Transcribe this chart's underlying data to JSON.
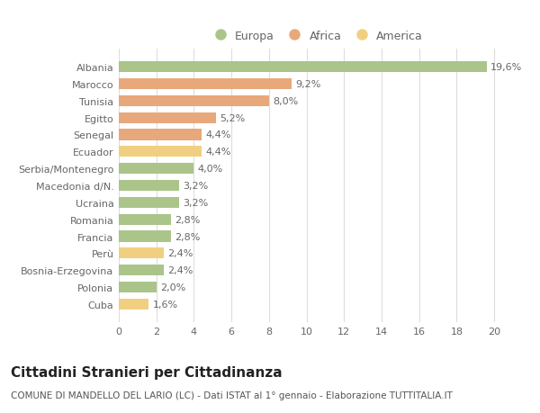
{
  "categories": [
    "Albania",
    "Marocco",
    "Tunisia",
    "Egitto",
    "Senegal",
    "Ecuador",
    "Serbia/Montenegro",
    "Macedonia d/N.",
    "Ucraina",
    "Romania",
    "Francia",
    "Perù",
    "Bosnia-Erzegovina",
    "Polonia",
    "Cuba"
  ],
  "values": [
    19.6,
    9.2,
    8.0,
    5.2,
    4.4,
    4.4,
    4.0,
    3.2,
    3.2,
    2.8,
    2.8,
    2.4,
    2.4,
    2.0,
    1.6
  ],
  "labels": [
    "19,6%",
    "9,2%",
    "8,0%",
    "5,2%",
    "4,4%",
    "4,4%",
    "4,0%",
    "3,2%",
    "3,2%",
    "2,8%",
    "2,8%",
    "2,4%",
    "2,4%",
    "2,0%",
    "1,6%"
  ],
  "colors": [
    "#aac48a",
    "#e8a87c",
    "#e8a87c",
    "#e8a87c",
    "#e8a87c",
    "#f0d080",
    "#aac48a",
    "#aac48a",
    "#aac48a",
    "#aac48a",
    "#aac48a",
    "#f0d080",
    "#aac48a",
    "#aac48a",
    "#f0d080"
  ],
  "legend": [
    {
      "label": "Europa",
      "color": "#aac48a"
    },
    {
      "label": "Africa",
      "color": "#e8a87c"
    },
    {
      "label": "America",
      "color": "#f0d080"
    }
  ],
  "xlim": [
    0,
    21
  ],
  "xticks": [
    0,
    2,
    4,
    6,
    8,
    10,
    12,
    14,
    16,
    18,
    20
  ],
  "title": "Cittadini Stranieri per Cittadinanza",
  "subtitle": "COMUNE DI MANDELLO DEL LARIO (LC) - Dati ISTAT al 1° gennaio - Elaborazione TUTTITALIA.IT",
  "bg_color": "#ffffff",
  "grid_color": "#dddddd",
  "bar_height": 0.65,
  "label_fontsize": 8,
  "tick_fontsize": 8,
  "title_fontsize": 11,
  "subtitle_fontsize": 7.5
}
